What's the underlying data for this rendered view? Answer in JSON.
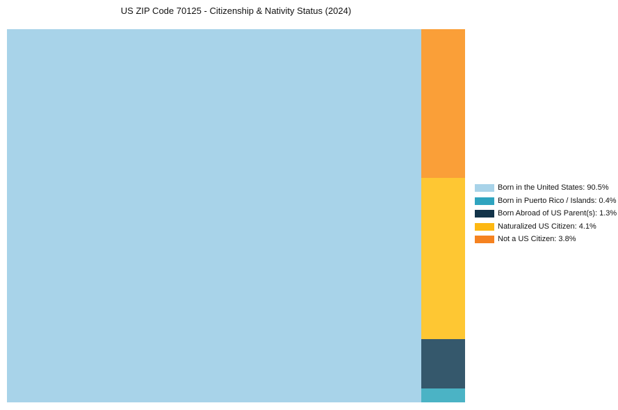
{
  "title": "US ZIP Code 70125 - Citizenship & Nativity Status (2024)",
  "chart_data": {
    "type": "treemap",
    "title": "US ZIP Code 70125 - Citizenship & Nativity Status (2024)",
    "categories": [
      "Born in the United States",
      "Born in Puerto Rico / Islands",
      "Born Abroad of US Parent(s)",
      "Naturalized US Citizen",
      "Not a US Citizen"
    ],
    "values": [
      90.5,
      0.4,
      1.3,
      4.1,
      3.8
    ],
    "unit": "%",
    "legend_position": "right",
    "legend_colors": [
      "#A8D3E9",
      "#2FA4BF",
      "#123349",
      "#FDB813",
      "#F58220"
    ],
    "block_colors": [
      "#A8D3E9",
      "#4BB3C5",
      "#35586C",
      "#FEC733",
      "#FA9F38"
    ],
    "layout": "large block left, remainder stacked in right column top-to-bottom: Not a US Citizen, Naturalized US Citizen, Born Abroad of US Parent(s), Born in Puerto Rico / Islands"
  },
  "blocks": [
    {
      "name": "born-in-the-united-states",
      "label": "Born in the United States",
      "value": "90.5%",
      "color": "#A8D3E9"
    },
    {
      "name": "not-a-us-citizen",
      "label": "Not a US Citizen",
      "value": "3.8%",
      "color": "#FA9F38"
    },
    {
      "name": "naturalized-us-citizen",
      "label": "Naturalized US Citizen",
      "value": "4.1%",
      "color": "#FEC733"
    },
    {
      "name": "born-abroad-of-us-parents",
      "label": "Born Abroad of US Parent(s)",
      "value": "1.3%",
      "color": "#35586C"
    },
    {
      "name": "born-in-puerto-rico-islands",
      "label": "Born in Puerto Rico / Islands",
      "value": "0.4%",
      "color": "#4BB3C5"
    }
  ],
  "legend": {
    "items": [
      {
        "label": "Born in the United States: 90.5%",
        "color": "#A8D3E9"
      },
      {
        "label": "Born in Puerto Rico / Islands: 0.4%",
        "color": "#2FA4BF"
      },
      {
        "label": "Born Abroad of US Parent(s): 1.3%",
        "color": "#123349"
      },
      {
        "label": "Naturalized US Citizen: 4.1%",
        "color": "#FDB813"
      },
      {
        "label": "Not a US Citizen: 3.8%",
        "color": "#F58220"
      }
    ]
  }
}
